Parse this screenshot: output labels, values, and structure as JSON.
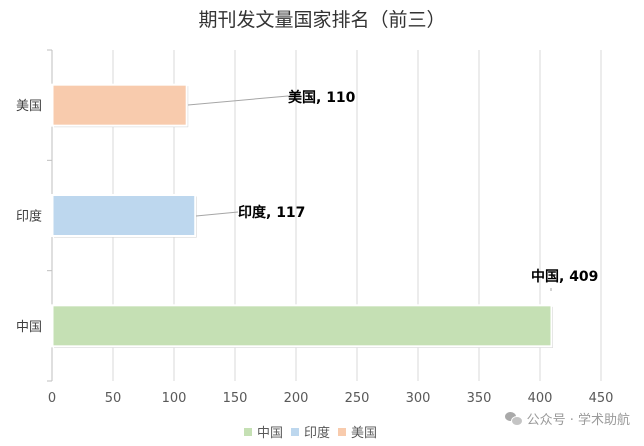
{
  "chart_data": {
    "type": "bar",
    "orientation": "horizontal",
    "title": "期刊发文量国家排名（前三）",
    "categories": [
      "中国",
      "印度",
      "美国"
    ],
    "values": [
      409,
      117,
      110
    ],
    "colors": [
      "#c5e0b4",
      "#bdd7ee",
      "#f8cbad"
    ],
    "data_labels": [
      "中国, 409",
      "印度, 117",
      "美国, 110"
    ],
    "xlim": [
      0,
      450
    ],
    "xticks": [
      0,
      50,
      100,
      150,
      200,
      250,
      300,
      350,
      400,
      450
    ],
    "grid": true,
    "legend": {
      "position": "bottom",
      "entries": [
        "中国",
        "印度",
        "美国"
      ]
    }
  },
  "watermark": {
    "icon": "wechat-icon",
    "text": "公众号 · 学术助航"
  }
}
